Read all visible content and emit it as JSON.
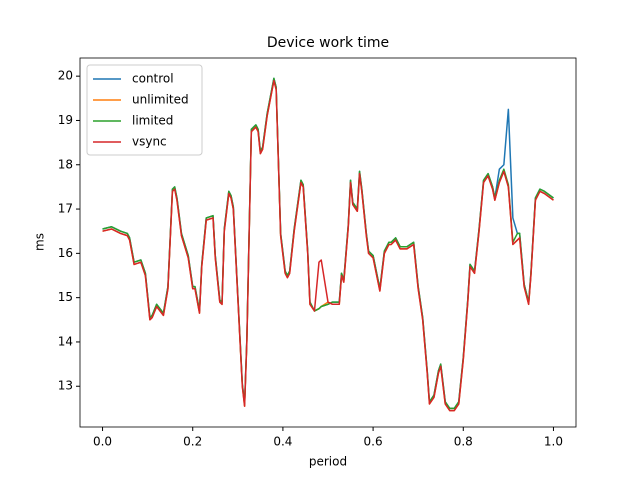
{
  "chart_data": {
    "type": "line",
    "title": "Device work time",
    "xlabel": "period",
    "ylabel": "ms",
    "xlim": [
      -0.05,
      1.05
    ],
    "ylim": [
      12.08,
      20.41
    ],
    "xticks": [
      {
        "value": 0,
        "label": "0.0"
      },
      0.2,
      0.4,
      0.6,
      0.8,
      {
        "value": 1,
        "label": "1.0"
      }
    ],
    "yticks": [
      13,
      14,
      15,
      16,
      17,
      18,
      19,
      20
    ],
    "legend": "upper left",
    "x": [
      0,
      0.02,
      0.04,
      0.055,
      0.06,
      0.07,
      0.085,
      0.095,
      0.105,
      0.11,
      0.12,
      0.135,
      0.145,
      0.155,
      0.16,
      0.165,
      0.175,
      0.19,
      0.2,
      0.205,
      0.215,
      0.22,
      0.23,
      0.245,
      0.25,
      0.26,
      0.265,
      0.27,
      0.28,
      0.285,
      0.29,
      0.3,
      0.31,
      0.315,
      0.32,
      0.33,
      0.34,
      0.345,
      0.35,
      0.355,
      0.365,
      0.38,
      0.385,
      0.395,
      0.405,
      0.41,
      0.415,
      0.425,
      0.44,
      0.445,
      0.455,
      0.46,
      0.47,
      0.48,
      0.485,
      0.5,
      0.51,
      0.525,
      0.53,
      0.535,
      0.545,
      0.55,
      0.555,
      0.565,
      0.57,
      0.575,
      0.585,
      0.59,
      0.6,
      0.615,
      0.625,
      0.635,
      0.64,
      0.65,
      0.66,
      0.675,
      0.69,
      0.7,
      0.71,
      0.72,
      0.725,
      0.735,
      0.745,
      0.75,
      0.76,
      0.77,
      0.78,
      0.79,
      0.8,
      0.81,
      0.815,
      0.825,
      0.835,
      0.845,
      0.855,
      0.865,
      0.87,
      0.88,
      0.89,
      0.9,
      0.91,
      0.92,
      0.925,
      0.935,
      0.945,
      0.95,
      0.96,
      0.97,
      0.98,
      1.0
    ],
    "series": [
      {
        "name": "control",
        "color": "#1f77b4",
        "values": [
          16.55,
          16.6,
          16.5,
          16.45,
          16.35,
          15.8,
          15.85,
          15.55,
          14.55,
          14.6,
          14.85,
          14.65,
          15.25,
          17.45,
          17.5,
          17.25,
          16.45,
          15.95,
          15.25,
          15.25,
          14.7,
          15.75,
          16.8,
          16.85,
          15.95,
          14.95,
          14.9,
          16.55,
          17.4,
          17.3,
          17.05,
          15.05,
          13.05,
          12.6,
          14.05,
          18.8,
          18.9,
          18.8,
          18.3,
          18.4,
          19.15,
          19.95,
          19.75,
          16.45,
          15.6,
          15.5,
          15.6,
          16.55,
          17.65,
          17.55,
          16.05,
          14.9,
          14.7,
          14.75,
          14.8,
          14.85,
          14.9,
          14.9,
          15.55,
          15.4,
          16.65,
          17.65,
          17.15,
          17.0,
          17.85,
          17.45,
          16.45,
          16.05,
          15.95,
          15.2,
          16.05,
          16.25,
          16.25,
          16.35,
          16.15,
          16.15,
          16.25,
          15.25,
          14.55,
          13.35,
          12.65,
          12.8,
          13.35,
          13.5,
          12.65,
          12.5,
          12.5,
          12.65,
          13.65,
          14.95,
          15.75,
          15.6,
          16.55,
          17.65,
          17.8,
          17.5,
          17.25,
          17.9,
          18.0,
          19.25,
          16.8,
          16.45,
          16.45,
          15.3,
          14.9,
          15.55,
          17.25,
          17.45,
          17.4,
          17.25
        ]
      },
      {
        "name": "unlimited",
        "color": "#ff7f0e",
        "values": [
          16.5,
          16.55,
          16.45,
          16.4,
          16.3,
          15.75,
          15.8,
          15.5,
          14.5,
          14.55,
          14.8,
          14.6,
          15.2,
          17.4,
          17.45,
          17.2,
          16.4,
          15.9,
          15.2,
          15.2,
          14.65,
          15.7,
          16.75,
          16.8,
          15.9,
          14.9,
          14.85,
          16.5,
          17.35,
          17.25,
          17.0,
          15.0,
          13.0,
          12.55,
          14.0,
          18.75,
          18.85,
          18.75,
          18.25,
          18.35,
          19.1,
          19.9,
          19.7,
          16.4,
          15.55,
          15.45,
          15.55,
          16.5,
          17.6,
          17.5,
          16.0,
          14.85,
          14.7,
          14.75,
          14.8,
          14.9,
          14.85,
          14.85,
          15.5,
          15.35,
          16.6,
          17.6,
          17.1,
          16.95,
          17.8,
          17.4,
          16.4,
          16.0,
          15.9,
          15.15,
          16.0,
          16.2,
          16.2,
          16.3,
          16.1,
          16.1,
          16.2,
          15.2,
          14.5,
          13.3,
          12.6,
          12.75,
          13.3,
          13.45,
          12.6,
          12.45,
          12.45,
          12.6,
          13.6,
          14.9,
          15.7,
          15.55,
          16.5,
          17.6,
          17.75,
          17.45,
          17.2,
          17.6,
          17.85,
          17.5,
          16.2,
          16.3,
          16.35,
          15.25,
          14.85,
          15.5,
          17.2,
          17.4,
          17.35,
          17.2
        ]
      },
      {
        "name": "limited",
        "color": "#2ca02c",
        "values": [
          16.55,
          16.6,
          16.5,
          16.45,
          16.35,
          15.8,
          15.85,
          15.55,
          14.55,
          14.6,
          14.85,
          14.65,
          15.25,
          17.45,
          17.5,
          17.25,
          16.45,
          15.95,
          15.25,
          15.25,
          14.7,
          15.75,
          16.8,
          16.85,
          15.95,
          14.95,
          14.9,
          16.55,
          17.4,
          17.3,
          17.05,
          15.05,
          13.05,
          12.6,
          14.05,
          18.8,
          18.9,
          18.8,
          18.3,
          18.4,
          19.15,
          19.95,
          19.75,
          16.45,
          15.6,
          15.5,
          15.6,
          16.55,
          17.65,
          17.55,
          16.05,
          14.9,
          14.7,
          14.75,
          14.8,
          14.85,
          14.9,
          14.9,
          15.55,
          15.4,
          16.65,
          17.65,
          17.15,
          17.0,
          17.85,
          17.45,
          16.45,
          16.05,
          15.95,
          15.2,
          16.05,
          16.25,
          16.25,
          16.35,
          16.15,
          16.15,
          16.25,
          15.25,
          14.55,
          13.35,
          12.65,
          12.8,
          13.35,
          13.5,
          12.65,
          12.5,
          12.5,
          12.65,
          13.65,
          14.95,
          15.75,
          15.6,
          16.55,
          17.65,
          17.8,
          17.5,
          17.25,
          17.65,
          17.9,
          17.55,
          16.25,
          16.45,
          16.45,
          15.3,
          14.9,
          15.55,
          17.25,
          17.45,
          17.4,
          17.25
        ]
      },
      {
        "name": "vsync",
        "color": "#d62728",
        "values": [
          16.5,
          16.55,
          16.45,
          16.4,
          16.3,
          15.75,
          15.8,
          15.5,
          14.5,
          14.55,
          14.8,
          14.6,
          15.2,
          17.4,
          17.45,
          17.2,
          16.4,
          15.9,
          15.2,
          15.2,
          14.65,
          15.7,
          16.75,
          16.8,
          15.9,
          14.9,
          14.85,
          16.5,
          17.35,
          17.25,
          17.0,
          15.0,
          13.0,
          12.55,
          14.0,
          18.75,
          18.85,
          18.75,
          18.25,
          18.35,
          19.1,
          19.9,
          19.7,
          16.4,
          15.55,
          15.45,
          15.55,
          16.5,
          17.6,
          17.5,
          16.0,
          14.85,
          14.7,
          15.8,
          15.85,
          14.9,
          14.85,
          14.85,
          15.5,
          15.35,
          16.6,
          17.6,
          17.1,
          16.95,
          17.8,
          17.4,
          16.4,
          16.0,
          15.9,
          15.15,
          16.0,
          16.2,
          16.2,
          16.3,
          16.1,
          16.1,
          16.2,
          15.2,
          14.5,
          13.3,
          12.6,
          12.75,
          13.3,
          13.45,
          12.6,
          12.45,
          12.45,
          12.6,
          13.6,
          14.9,
          15.7,
          15.55,
          16.5,
          17.6,
          17.75,
          17.45,
          17.2,
          17.6,
          17.85,
          17.5,
          16.2,
          16.3,
          16.35,
          15.25,
          14.85,
          15.5,
          17.2,
          17.4,
          17.35,
          17.2
        ]
      }
    ]
  }
}
